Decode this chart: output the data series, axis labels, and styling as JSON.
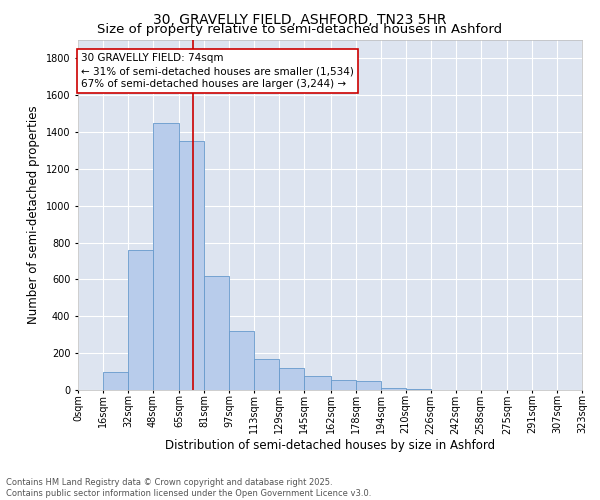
{
  "title_line1": "30, GRAVELLY FIELD, ASHFORD, TN23 5HR",
  "title_line2": "Size of property relative to semi-detached houses in Ashford",
  "xlabel": "Distribution of semi-detached houses by size in Ashford",
  "ylabel": "Number of semi-detached properties",
  "footer_line1": "Contains HM Land Registry data © Crown copyright and database right 2025.",
  "footer_line2": "Contains public sector information licensed under the Open Government Licence v3.0.",
  "annotation_line1": "30 GRAVELLY FIELD: 74sqm",
  "annotation_line2": "← 31% of semi-detached houses are smaller (1,534)",
  "annotation_line3": "67% of semi-detached houses are larger (3,244) →",
  "subject_value": 74,
  "bins": [
    0,
    16,
    32,
    48,
    65,
    81,
    97,
    113,
    129,
    145,
    162,
    178,
    194,
    210,
    226,
    242,
    258,
    275,
    291,
    307,
    323
  ],
  "bin_labels": [
    "0sqm",
    "16sqm",
    "32sqm",
    "48sqm",
    "65sqm",
    "81sqm",
    "97sqm",
    "113sqm",
    "129sqm",
    "145sqm",
    "162sqm",
    "178sqm",
    "194sqm",
    "210sqm",
    "226sqm",
    "242sqm",
    "258sqm",
    "275sqm",
    "291sqm",
    "307sqm",
    "323sqm"
  ],
  "counts": [
    2,
    100,
    760,
    1450,
    1350,
    620,
    320,
    170,
    120,
    75,
    55,
    50,
    10,
    8,
    0,
    0,
    0,
    0,
    0,
    0
  ],
  "bar_color": "#b8cceb",
  "bar_edge_color": "#6699cc",
  "marker_color": "#cc0000",
  "background_color": "#dde4f0",
  "ylim": [
    0,
    1900
  ],
  "yticks": [
    0,
    200,
    400,
    600,
    800,
    1000,
    1200,
    1400,
    1600,
    1800
  ],
  "grid_color": "#ffffff",
  "annotation_box_color": "#cc0000",
  "title_fontsize": 10,
  "axis_label_fontsize": 8.5,
  "tick_fontsize": 7,
  "annotation_fontsize": 7.5,
  "footer_fontsize": 6
}
